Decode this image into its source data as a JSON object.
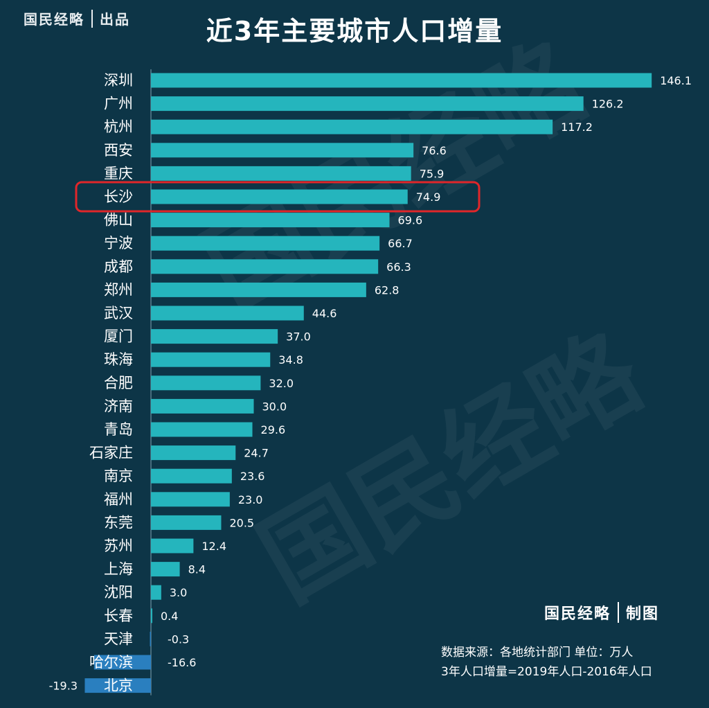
{
  "brand": {
    "name": "国民经略",
    "tag": "出品"
  },
  "credit": {
    "name": "国民经略",
    "tag": "制图"
  },
  "source": {
    "line1": "数据来源：各地统计部门 单位：万人",
    "line2": "3年人口增量=2019年人口-2016年人口"
  },
  "watermark": "国民经略",
  "colors": {
    "background": "#0d3547",
    "bar_positive": "#25b5bd",
    "bar_negative": "#2a7fbf",
    "highlight": "#e0262a"
  },
  "chart_data": {
    "type": "bar",
    "orientation": "horizontal",
    "title": "近3年主要城市人口增量",
    "categories": [
      "深圳",
      "广州",
      "杭州",
      "西安",
      "重庆",
      "长沙",
      "佛山",
      "宁波",
      "成都",
      "郑州",
      "武汉",
      "厦门",
      "珠海",
      "合肥",
      "济南",
      "青岛",
      "石家庄",
      "南京",
      "福州",
      "东莞",
      "苏州",
      "上海",
      "沈阳",
      "长春",
      "天津",
      "哈尔滨",
      "北京"
    ],
    "values": [
      146.1,
      126.2,
      117.2,
      76.6,
      75.9,
      74.9,
      69.6,
      66.7,
      66.3,
      62.8,
      44.6,
      37.0,
      34.8,
      32.0,
      30.0,
      29.6,
      24.7,
      23.6,
      23.0,
      20.5,
      12.4,
      8.4,
      3.0,
      0.4,
      -0.3,
      -16.6,
      -19.3
    ],
    "labels": [
      "146.1",
      "126.2",
      "117.2",
      "76.6",
      "75.9",
      "74.9",
      "69.6",
      "66.7",
      "66.3",
      "62.8",
      "44.6",
      "37.0",
      "34.8",
      "32.0",
      "30.0",
      "29.6",
      "24.7",
      "23.6",
      "23.0",
      "20.5",
      "12.4",
      "8.4",
      "3.0",
      "0.4",
      "-0.3",
      "-16.6",
      "-19.3"
    ],
    "highlight_category": "长沙",
    "unit": "万人"
  }
}
